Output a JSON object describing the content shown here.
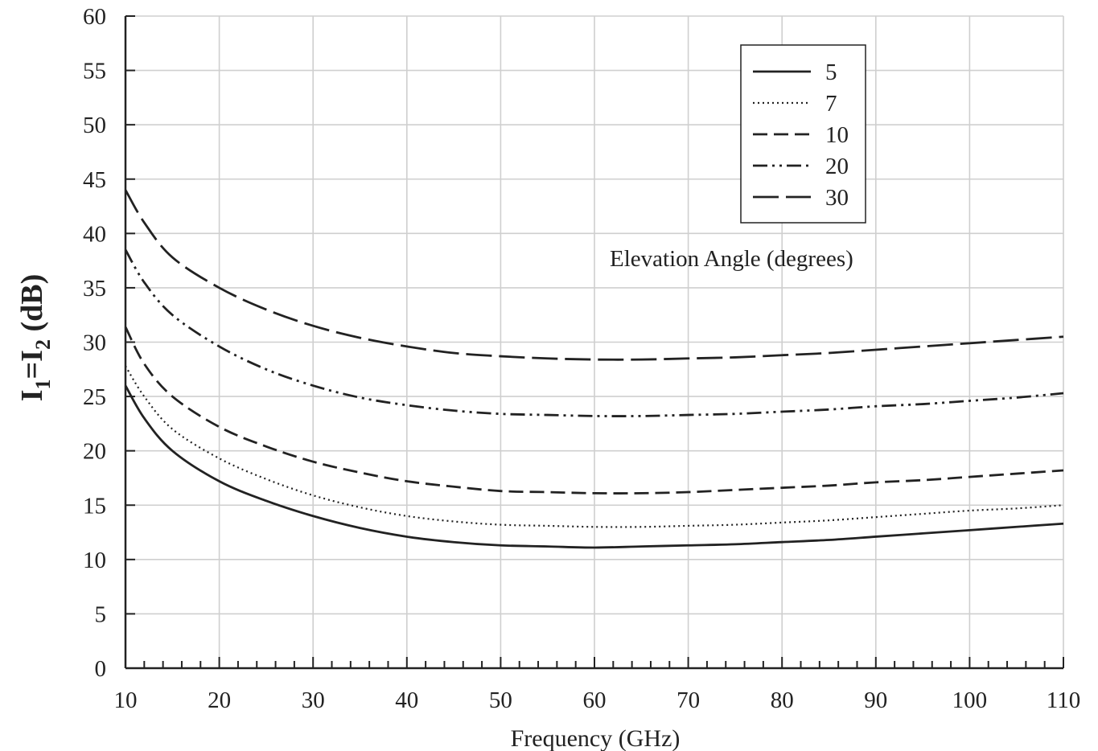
{
  "chart_data": {
    "type": "line",
    "title": "",
    "xlabel": "Frequency (GHz)",
    "ylabel": {
      "main": "I",
      "sub1": "1",
      "eq": "=I",
      "sub2": "2",
      "unit": " (dB)"
    },
    "xlim": [
      10,
      110
    ],
    "ylim": [
      0,
      60
    ],
    "xticks": [
      10,
      20,
      30,
      40,
      50,
      60,
      70,
      80,
      90,
      100,
      110
    ],
    "yticks": [
      0,
      5,
      10,
      15,
      20,
      25,
      30,
      35,
      40,
      45,
      50,
      55,
      60
    ],
    "grid": true,
    "legend_position": "top-right",
    "annotation": "Elevation Angle (degrees)",
    "series": [
      {
        "name": "5",
        "style": "solid",
        "x": [
          10,
          12,
          15,
          20,
          25,
          30,
          35,
          40,
          45,
          50,
          55,
          60,
          65,
          70,
          75,
          80,
          85,
          90,
          95,
          100,
          105,
          110
        ],
        "y": [
          26.0,
          23.0,
          20.0,
          17.2,
          15.4,
          14.0,
          12.9,
          12.1,
          11.6,
          11.3,
          11.2,
          11.1,
          11.2,
          11.3,
          11.4,
          11.6,
          11.8,
          12.1,
          12.4,
          12.7,
          13.0,
          13.3
        ]
      },
      {
        "name": "7",
        "style": "dotted",
        "x": [
          10,
          12,
          15,
          20,
          25,
          30,
          35,
          40,
          45,
          50,
          55,
          60,
          65,
          70,
          75,
          80,
          85,
          90,
          95,
          100,
          105,
          110
        ],
        "y": [
          27.8,
          25.0,
          22.0,
          19.3,
          17.4,
          15.9,
          14.8,
          14.0,
          13.5,
          13.2,
          13.1,
          13.0,
          13.0,
          13.1,
          13.2,
          13.4,
          13.6,
          13.9,
          14.2,
          14.5,
          14.7,
          15.0
        ]
      },
      {
        "name": "10",
        "style": "dashed",
        "x": [
          10,
          12,
          15,
          20,
          25,
          30,
          35,
          40,
          45,
          50,
          55,
          60,
          65,
          70,
          75,
          80,
          85,
          90,
          95,
          100,
          105,
          110
        ],
        "y": [
          31.4,
          28.0,
          25.0,
          22.2,
          20.4,
          19.0,
          18.0,
          17.2,
          16.7,
          16.3,
          16.2,
          16.1,
          16.1,
          16.2,
          16.4,
          16.6,
          16.8,
          17.1,
          17.3,
          17.6,
          17.9,
          18.2
        ]
      },
      {
        "name": "20",
        "style": "dashdotdot",
        "x": [
          10,
          12,
          15,
          20,
          25,
          30,
          35,
          40,
          45,
          50,
          55,
          60,
          65,
          70,
          75,
          80,
          85,
          90,
          95,
          100,
          105,
          110
        ],
        "y": [
          38.5,
          35.5,
          32.5,
          29.6,
          27.5,
          26.0,
          24.9,
          24.2,
          23.7,
          23.4,
          23.3,
          23.2,
          23.2,
          23.3,
          23.4,
          23.6,
          23.8,
          24.1,
          24.3,
          24.6,
          24.9,
          25.3
        ]
      },
      {
        "name": "30",
        "style": "longdash",
        "x": [
          10,
          12,
          15,
          20,
          25,
          30,
          35,
          40,
          45,
          50,
          55,
          60,
          65,
          70,
          75,
          80,
          85,
          90,
          95,
          100,
          105,
          110
        ],
        "y": [
          44.0,
          41.0,
          37.8,
          35.0,
          33.0,
          31.5,
          30.4,
          29.6,
          29.0,
          28.7,
          28.5,
          28.4,
          28.4,
          28.5,
          28.6,
          28.8,
          29.0,
          29.3,
          29.6,
          29.9,
          30.2,
          30.5
        ]
      }
    ]
  }
}
